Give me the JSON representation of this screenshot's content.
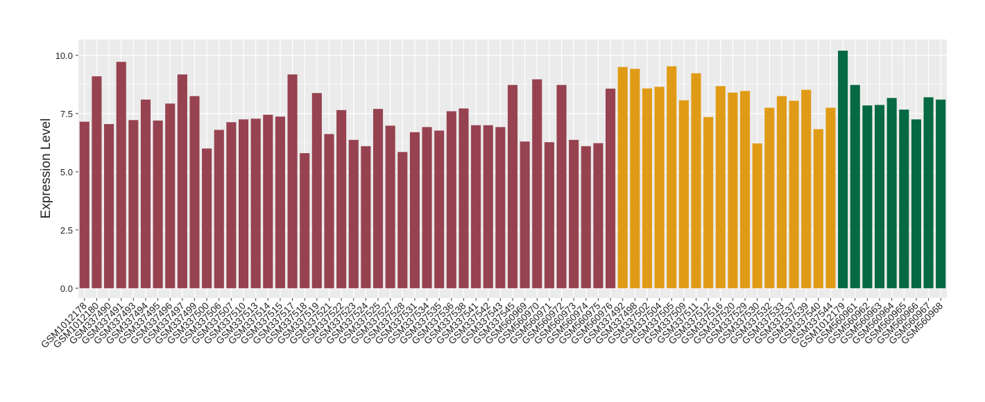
{
  "chart_data": {
    "type": "bar",
    "y_label": "Expression Level",
    "categories": [
      "GSM1012178",
      "GSM1012180",
      "GSM337490",
      "GSM337491",
      "GSM337493",
      "GSM337494",
      "GSM337495",
      "GSM337496",
      "GSM337497",
      "GSM337499",
      "GSM337500",
      "GSM337506",
      "GSM337507",
      "GSM337510",
      "GSM337513",
      "GSM337514",
      "GSM337515",
      "GSM337517",
      "GSM337518",
      "GSM337519",
      "GSM337521",
      "GSM337522",
      "GSM337523",
      "GSM337524",
      "GSM337525",
      "GSM337527",
      "GSM337528",
      "GSM337531",
      "GSM337534",
      "GSM337535",
      "GSM337536",
      "GSM337538",
      "GSM337541",
      "GSM337542",
      "GSM337543",
      "GSM337545",
      "GSM560969",
      "GSM560970",
      "GSM560971",
      "GSM560972",
      "GSM560973",
      "GSM560974",
      "GSM560975",
      "GSM560976",
      "GSM337492",
      "GSM337498",
      "GSM337502",
      "GSM337504",
      "GSM337505",
      "GSM337509",
      "GSM337511",
      "GSM337512",
      "GSM337516",
      "GSM337520",
      "GSM337529",
      "GSM337530",
      "GSM337532",
      "GSM337533",
      "GSM337537",
      "GSM337539",
      "GSM337540",
      "GSM337544",
      "GSM1012179",
      "GSM560961",
      "GSM560962",
      "GSM560963",
      "GSM560964",
      "GSM560965",
      "GSM560966",
      "GSM560967",
      "GSM560968"
    ],
    "values": [
      7.15,
      9.1,
      7.05,
      9.72,
      7.22,
      8.1,
      7.2,
      7.93,
      9.18,
      8.25,
      6.0,
      6.8,
      7.13,
      7.25,
      7.28,
      7.45,
      7.37,
      9.18,
      5.8,
      8.38,
      6.62,
      7.65,
      6.37,
      6.1,
      7.7,
      6.98,
      5.85,
      6.7,
      6.92,
      6.77,
      7.6,
      7.72,
      7.0,
      7.0,
      6.92,
      8.73,
      6.3,
      8.97,
      6.27,
      8.73,
      6.37,
      6.1,
      6.23,
      8.57,
      9.5,
      9.42,
      8.58,
      8.65,
      9.53,
      8.07,
      9.23,
      7.35,
      8.68,
      8.4,
      8.47,
      6.22,
      7.75,
      8.25,
      8.05,
      8.52,
      6.83,
      7.75,
      10.2,
      8.73,
      7.85,
      7.87,
      8.17,
      7.67,
      7.25,
      8.2,
      8.1
    ],
    "colors": [
      "#974250",
      "#974250",
      "#974250",
      "#974250",
      "#974250",
      "#974250",
      "#974250",
      "#974250",
      "#974250",
      "#974250",
      "#974250",
      "#974250",
      "#974250",
      "#974250",
      "#974250",
      "#974250",
      "#974250",
      "#974250",
      "#974250",
      "#974250",
      "#974250",
      "#974250",
      "#974250",
      "#974250",
      "#974250",
      "#974250",
      "#974250",
      "#974250",
      "#974250",
      "#974250",
      "#974250",
      "#974250",
      "#974250",
      "#974250",
      "#974250",
      "#974250",
      "#974250",
      "#974250",
      "#974250",
      "#974250",
      "#974250",
      "#974250",
      "#974250",
      "#974250",
      "#e09b16",
      "#e09b16",
      "#e09b16",
      "#e09b16",
      "#e09b16",
      "#e09b16",
      "#e09b16",
      "#e09b16",
      "#e09b16",
      "#e09b16",
      "#e09b16",
      "#e09b16",
      "#e09b16",
      "#e09b16",
      "#e09b16",
      "#e09b16",
      "#e09b16",
      "#e09b16",
      "#056943",
      "#056943",
      "#056943",
      "#056943",
      "#056943",
      "#056943",
      "#056943",
      "#056943",
      "#056943"
    ],
    "ylim": [
      -0.42,
      10.68
    ],
    "yticks": [
      {
        "value": 0,
        "label": "0.0"
      },
      2.5,
      {
        "value": 5,
        "label": "5.0"
      },
      7.5,
      {
        "value": 10,
        "label": "10.0"
      }
    ],
    "grid": true
  }
}
